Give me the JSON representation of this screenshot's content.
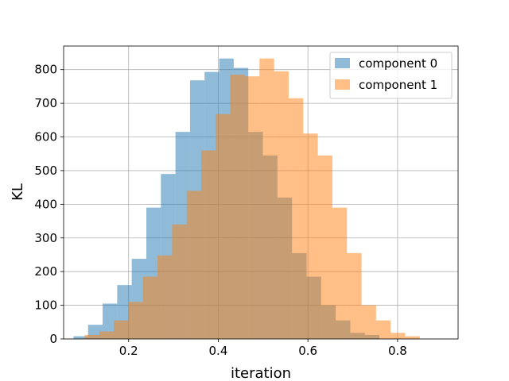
{
  "chart_data": {
    "type": "bar",
    "histogram": true,
    "title": "",
    "xlabel": "iteration",
    "ylabel": "KL",
    "xlim": [
      0.055,
      0.935
    ],
    "ylim": [
      0,
      870
    ],
    "xticks": [
      0.2,
      0.4,
      0.6,
      0.8
    ],
    "xtick_labels": [
      "0.2",
      "0.4",
      "0.6",
      "0.8"
    ],
    "yticks": [
      0,
      100,
      200,
      300,
      400,
      500,
      600,
      700,
      800
    ],
    "ytick_labels": [
      "0",
      "100",
      "200",
      "300",
      "400",
      "500",
      "600",
      "700",
      "800"
    ],
    "grid": true,
    "legend_position": "top-right",
    "series": [
      {
        "name": "component 0",
        "color": "#1f77b4",
        "alpha": 0.5,
        "bin_start": 0.077,
        "bin_width": 0.0325,
        "values": [
          8,
          42,
          105,
          160,
          238,
          390,
          490,
          615,
          768,
          793,
          833,
          805,
          615,
          545,
          420,
          255,
          185,
          100,
          55,
          18,
          12
        ]
      },
      {
        "name": "component 1",
        "color": "#ff7f0e",
        "alpha": 0.5,
        "bin_start": 0.102,
        "bin_width": 0.0325,
        "values": [
          12,
          22,
          55,
          110,
          185,
          248,
          340,
          440,
          560,
          668,
          785,
          780,
          833,
          795,
          715,
          610,
          545,
          390,
          255,
          100,
          55,
          18,
          8
        ]
      }
    ]
  }
}
